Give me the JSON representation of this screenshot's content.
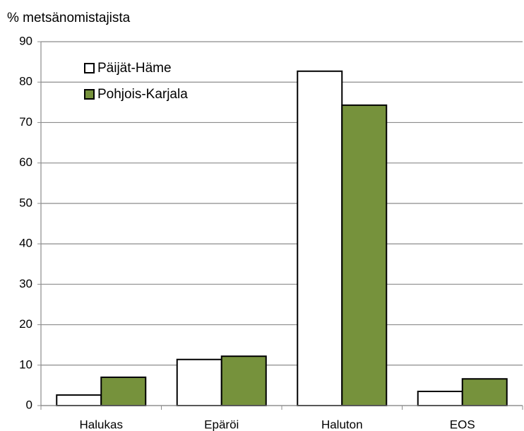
{
  "chart_data": {
    "type": "bar",
    "y_label": "% metsänomistajista",
    "categories": [
      "Halukas",
      "Epäröi",
      "Haluton",
      "EOS"
    ],
    "series": [
      {
        "name": "Päijät-Häme",
        "color": "#ffffff",
        "values": [
          2.6,
          11.4,
          82.7,
          3.5
        ]
      },
      {
        "name": "Pohjois-Karjala",
        "color": "#76923c",
        "values": [
          7.0,
          12.2,
          74.3,
          6.6
        ]
      }
    ],
    "ylim": [
      0,
      90
    ],
    "yticks": [
      0,
      10,
      20,
      30,
      40,
      50,
      60,
      70,
      80,
      90
    ],
    "grid": true,
    "legend": "upper left"
  }
}
